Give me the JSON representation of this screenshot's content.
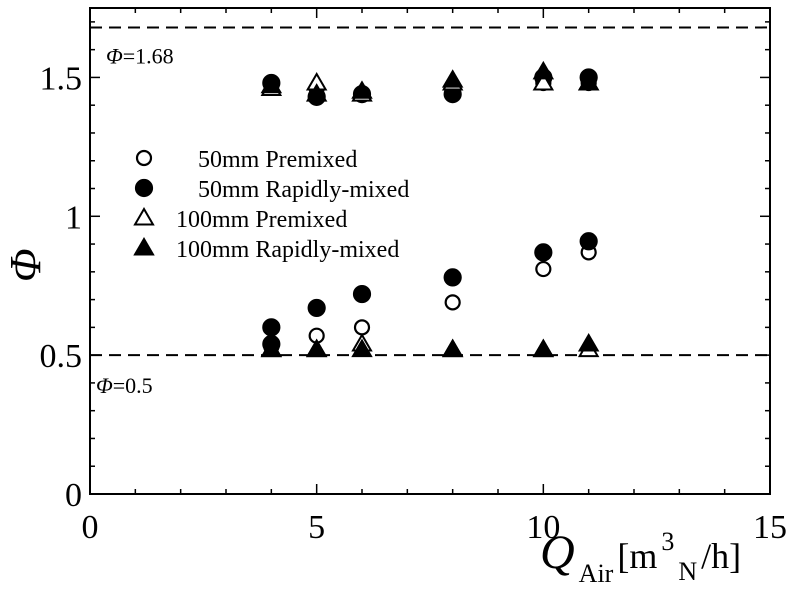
{
  "chart_data": {
    "type": "scatter",
    "title": "",
    "xlabel": {
      "main": "Q",
      "sub": "Air",
      "unit_open": "[m",
      "sup": "3",
      "unit_sub": "N",
      "unit_close": "/h]"
    },
    "ylabel": "Φ",
    "xlim": [
      0,
      15
    ],
    "ylim": [
      0,
      1.75
    ],
    "xticks": [
      0,
      5,
      10,
      15
    ],
    "yticks": [
      0,
      0.5,
      1,
      1.5
    ],
    "xtick_labels": [
      "0",
      "5",
      "10",
      "15"
    ],
    "ytick_labels": [
      "0",
      "0.5",
      "1",
      "1.5"
    ],
    "grid": false,
    "legend_position": "center-left",
    "reference_lines": [
      {
        "y": 1.68,
        "label_symbol": "Φ",
        "label_value": "=1.68"
      },
      {
        "y": 0.5,
        "label_symbol": "Φ",
        "label_value": "=0.5"
      }
    ],
    "series": [
      {
        "name": "50mm Premixed",
        "marker": "circle-open",
        "x": [
          4,
          4,
          5,
          5,
          6,
          6,
          8,
          8,
          10,
          10,
          11,
          11
        ],
        "y": [
          0.53,
          1.47,
          0.57,
          1.46,
          0.6,
          1.44,
          0.69,
          1.47,
          0.81,
          1.48,
          0.87,
          1.48
        ]
      },
      {
        "name": "50mm Rapidly-mixed",
        "marker": "circle-filled",
        "x": [
          4,
          4,
          4,
          5,
          5,
          6,
          6,
          8,
          8,
          10,
          10,
          11,
          11
        ],
        "y": [
          0.6,
          0.54,
          1.48,
          0.67,
          1.43,
          0.72,
          1.44,
          0.78,
          1.44,
          0.87,
          1.5,
          0.91,
          1.5
        ]
      },
      {
        "name": "100mm Premixed",
        "marker": "triangle-open",
        "x": [
          4,
          4,
          5,
          5,
          6,
          6,
          8,
          8,
          10,
          10,
          11,
          11
        ],
        "y": [
          0.52,
          1.46,
          0.52,
          1.48,
          0.54,
          1.44,
          0.52,
          1.48,
          0.52,
          1.48,
          0.52,
          1.48
        ]
      },
      {
        "name": "100mm Rapidly-mixed",
        "marker": "triangle-filled",
        "x": [
          4,
          4,
          5,
          5,
          6,
          6,
          8,
          8,
          10,
          10,
          11,
          11
        ],
        "y": [
          0.52,
          1.47,
          0.52,
          1.44,
          0.52,
          1.45,
          0.52,
          1.49,
          0.52,
          1.52,
          0.54,
          1.48
        ]
      }
    ]
  }
}
